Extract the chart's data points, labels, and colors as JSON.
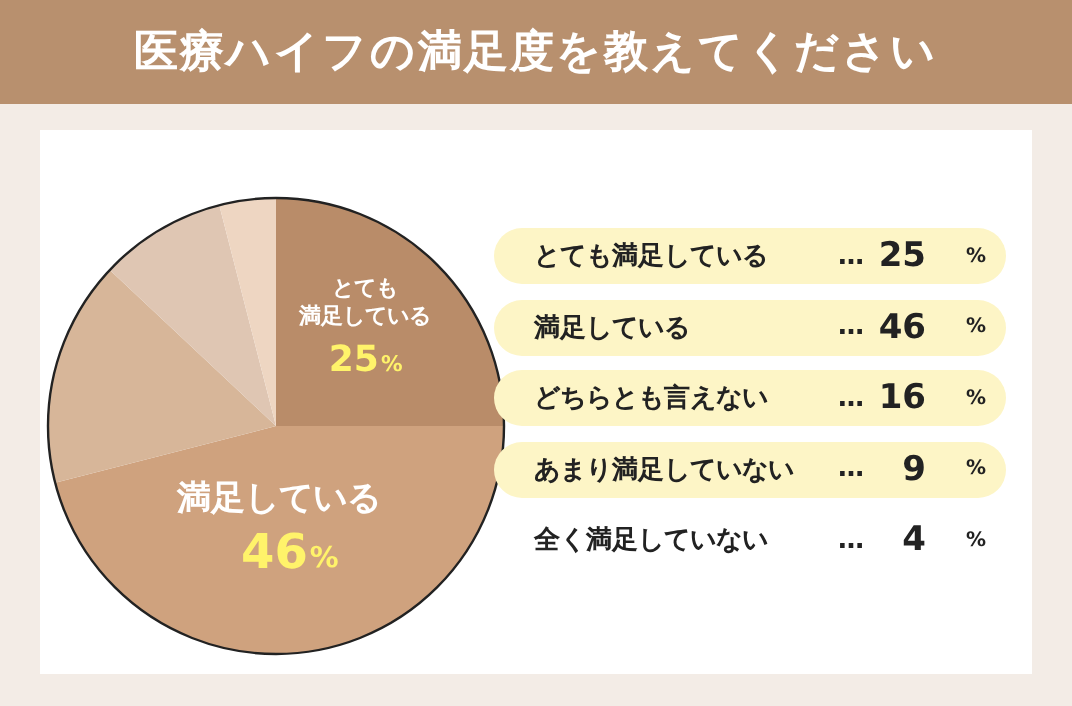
{
  "chart_data": {
    "type": "pie",
    "title": "医療ハイフの満足度を教えてください",
    "categories": [
      "とても満足している",
      "満足している",
      null,
      null,
      null
    ],
    "values": [
      25,
      46,
      16,
      9,
      4
    ],
    "colors": [
      "#b98c69",
      "#cfa27e",
      "#d7b699",
      "#dfc6b3",
      "#eed6c2"
    ],
    "value_labels": [
      "25%",
      "46%",
      null,
      null,
      null
    ],
    "annotations": [
      "とても満足している … 25 %",
      "満足している … 46 %",
      "どちらとも言えない … 16 %",
      "あまり満足していない … 9 %",
      "全く満足していない … 4 %"
    ]
  }
}
